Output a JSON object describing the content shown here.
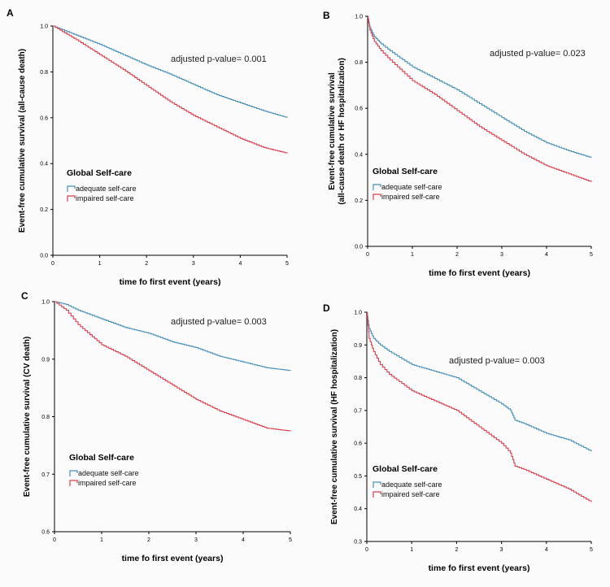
{
  "x_axis_label": "time fo first event (years)",
  "legend": {
    "title": "Global Self-care",
    "adequate": "adequate self-care",
    "impaired": "impaired self-care",
    "adequate_color": "#4a90b8",
    "impaired_color": "#d9414f"
  },
  "chart_data": [
    {
      "panel": "A",
      "type": "line",
      "title": "",
      "xlabel": "time fo first event (years)",
      "ylabel": "Event-free cumulative survival (all-cause death)",
      "annotation": "adjusted p-value= 0.001",
      "xlim": [
        0,
        5
      ],
      "ylim": [
        0.0,
        1.0
      ],
      "x_ticks": [
        "0",
        "1",
        "2",
        "3",
        "4",
        "5"
      ],
      "y_ticks": [
        "0.0",
        "0.2",
        "0.4",
        "0.6",
        "0.8",
        "1.0"
      ],
      "series": [
        {
          "name": "adequate self-care",
          "x": [
            0,
            0.25,
            0.5,
            1,
            1.5,
            2,
            2.5,
            3,
            3.5,
            4,
            4.5,
            5
          ],
          "values": [
            1.0,
            0.98,
            0.96,
            0.92,
            0.875,
            0.83,
            0.79,
            0.745,
            0.7,
            0.665,
            0.63,
            0.6
          ]
        },
        {
          "name": "impaired self-care",
          "x": [
            0,
            0.25,
            0.5,
            1,
            1.5,
            2,
            2.5,
            3,
            3.5,
            4,
            4.5,
            5
          ],
          "values": [
            1.0,
            0.97,
            0.94,
            0.875,
            0.81,
            0.74,
            0.67,
            0.61,
            0.56,
            0.51,
            0.47,
            0.445
          ]
        }
      ]
    },
    {
      "panel": "B",
      "type": "line",
      "title": "",
      "xlabel": "time fo first event (years)",
      "ylabel": "Event-free cumulative survival (all-cause death or HF hospitalization)",
      "annotation": "adjusted p-value= 0.023",
      "xlim": [
        0,
        5
      ],
      "ylim": [
        0.0,
        1.0
      ],
      "x_ticks": [
        "0",
        "1",
        "2",
        "3",
        "4",
        "5"
      ],
      "y_ticks": [
        "0.0",
        "0.2",
        "0.4",
        "0.6",
        "0.8",
        "1.0"
      ],
      "series": [
        {
          "name": "adequate self-care",
          "x": [
            0,
            0.05,
            0.15,
            0.3,
            0.5,
            1,
            1.5,
            2,
            2.5,
            3,
            3.5,
            4,
            4.5,
            5
          ],
          "values": [
            1.0,
            0.95,
            0.91,
            0.88,
            0.85,
            0.78,
            0.73,
            0.68,
            0.62,
            0.56,
            0.5,
            0.45,
            0.415,
            0.385
          ]
        },
        {
          "name": "impaired self-care",
          "x": [
            0,
            0.05,
            0.15,
            0.3,
            0.5,
            1,
            1.5,
            2,
            2.5,
            3,
            3.5,
            4,
            4.5,
            5
          ],
          "values": [
            1.0,
            0.94,
            0.89,
            0.85,
            0.81,
            0.72,
            0.66,
            0.59,
            0.52,
            0.46,
            0.4,
            0.35,
            0.315,
            0.28
          ]
        }
      ]
    },
    {
      "panel": "C",
      "type": "line",
      "title": "",
      "xlabel": "time fo first event (years)",
      "ylabel": "Event-free cumulative survival (CV death)",
      "annotation": "adjusted p-value= 0.003",
      "xlim": [
        0,
        5
      ],
      "ylim": [
        0.6,
        1.0
      ],
      "x_ticks": [
        "0",
        "1",
        "2",
        "3",
        "4",
        "5"
      ],
      "y_ticks": [
        "0.6",
        "0.7",
        "0.8",
        "0.9",
        "1.0"
      ],
      "series": [
        {
          "name": "adequate self-care",
          "x": [
            0,
            0.25,
            0.5,
            1,
            1.5,
            2,
            2.5,
            3,
            3.5,
            4,
            4.5,
            5
          ],
          "values": [
            1.0,
            0.995,
            0.985,
            0.97,
            0.955,
            0.945,
            0.93,
            0.92,
            0.905,
            0.895,
            0.885,
            0.88
          ]
        },
        {
          "name": "impaired self-care",
          "x": [
            0,
            0.25,
            0.5,
            1,
            1.5,
            2,
            2.5,
            3,
            3.5,
            4,
            4.5,
            5
          ],
          "values": [
            1.0,
            0.985,
            0.96,
            0.925,
            0.905,
            0.88,
            0.855,
            0.83,
            0.81,
            0.795,
            0.78,
            0.775
          ]
        }
      ]
    },
    {
      "panel": "D",
      "type": "line",
      "title": "",
      "xlabel": "time fo first event (years)",
      "ylabel": "Event-free cumulative survival (HF hospitalization)",
      "annotation": "adjusted p-value= 0.003",
      "xlim": [
        0,
        5
      ],
      "ylim": [
        0.3,
        1.0
      ],
      "x_ticks": [
        "0",
        "1",
        "2",
        "3",
        "4",
        "5"
      ],
      "y_ticks": [
        "0.3",
        "0.4",
        "0.5",
        "0.6",
        "0.7",
        "0.8",
        "0.9",
        "1.0"
      ],
      "series": [
        {
          "name": "adequate self-care",
          "x": [
            0,
            0.05,
            0.15,
            0.3,
            0.5,
            1,
            1.5,
            2,
            2.5,
            3,
            3.2,
            3.3,
            3.5,
            4,
            4.5,
            5
          ],
          "values": [
            1.0,
            0.95,
            0.92,
            0.9,
            0.88,
            0.84,
            0.82,
            0.8,
            0.76,
            0.72,
            0.7,
            0.67,
            0.66,
            0.63,
            0.61,
            0.575
          ]
        },
        {
          "name": "impaired self-care",
          "x": [
            0,
            0.05,
            0.15,
            0.3,
            0.5,
            1,
            1.5,
            2,
            2.5,
            3,
            3.2,
            3.3,
            3.5,
            4,
            4.5,
            5
          ],
          "values": [
            1.0,
            0.92,
            0.88,
            0.84,
            0.81,
            0.76,
            0.73,
            0.7,
            0.65,
            0.6,
            0.57,
            0.53,
            0.52,
            0.49,
            0.46,
            0.42
          ]
        }
      ]
    }
  ]
}
